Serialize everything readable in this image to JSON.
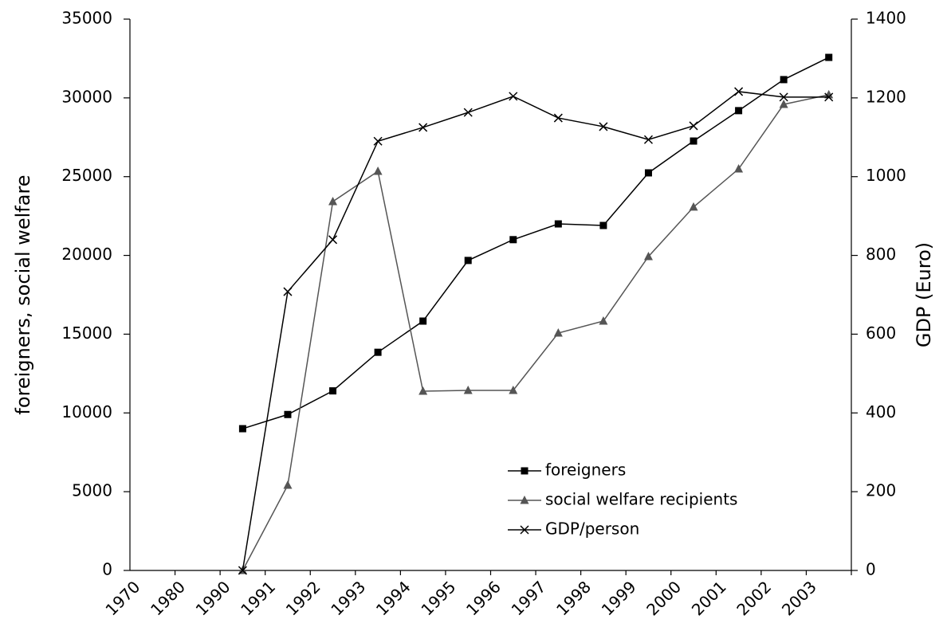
{
  "chart_data": {
    "type": "line",
    "categories": [
      "1970",
      "1980",
      "1990",
      "1991",
      "1992",
      "1993",
      "1994",
      "1995",
      "1996",
      "1997",
      "1998",
      "1999",
      "2000",
      "2001",
      "2002",
      "2003"
    ],
    "y_label": "foreigners, social welfare",
    "y2_label": "GDP (Euro)",
    "ylim": [
      0,
      35000
    ],
    "yticks": [
      0,
      5000,
      10000,
      15000,
      20000,
      25000,
      30000,
      35000
    ],
    "y2lim": [
      0,
      1400
    ],
    "y2ticks": [
      0,
      200,
      400,
      600,
      800,
      1000,
      1200,
      1400
    ],
    "legend": "lower right",
    "series": [
      {
        "name": "foreigners",
        "color": "#000000",
        "marker": "square",
        "values": [
          null,
          null,
          9000,
          9900,
          11400,
          13850,
          15830,
          19680,
          21000,
          22000,
          21900,
          25240,
          27260,
          29190,
          31160,
          32570
        ]
      },
      {
        "name": "social welfare recipients",
        "color": "#555555",
        "marker": "triangle",
        "values": [
          null,
          null,
          0,
          5410,
          23420,
          25340,
          11380,
          11430,
          11430,
          15070,
          15830,
          19930,
          23070,
          25490,
          29590,
          30200
        ]
      },
      {
        "name": "GDP/person",
        "color": "#000000",
        "marker": "x",
        "axis": "y2",
        "values": [
          null,
          null,
          0,
          708,
          840,
          1090,
          1125,
          1163,
          1204,
          1149,
          1127,
          1094,
          1129,
          1216,
          1202,
          1202
        ]
      }
    ]
  }
}
